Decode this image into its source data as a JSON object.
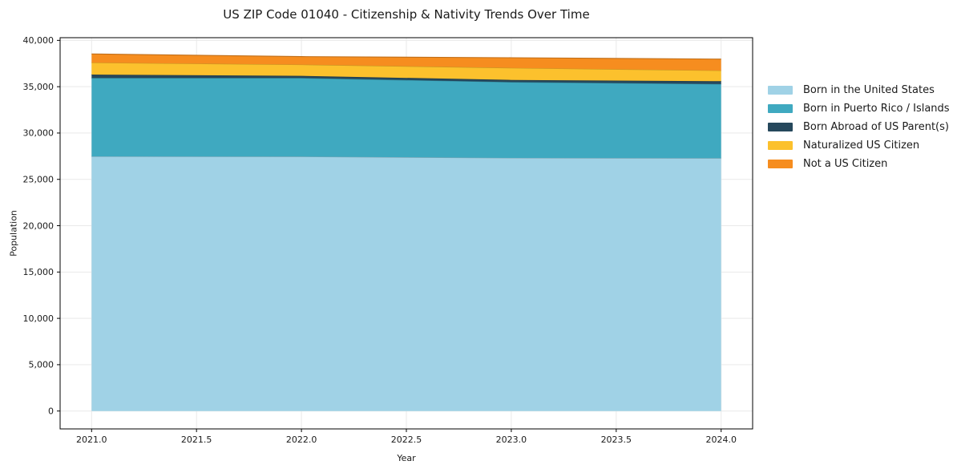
{
  "figure": {
    "background": "#ffffff",
    "text_color": "#1a1a1a",
    "grid_color": "#e9e9e9",
    "frame_color": "#000000"
  },
  "chart_data": {
    "type": "area",
    "stacked": true,
    "title": "US ZIP Code 01040 - Citizenship & Nativity Trends Over Time",
    "xlabel": "Year",
    "ylabel": "Population",
    "x": [
      2021,
      2022,
      2023,
      2024
    ],
    "series": [
      {
        "name": "Born in the United States",
        "color": "#a0d2e6",
        "values": [
          27480,
          27460,
          27310,
          27285
        ]
      },
      {
        "name": "Born in Puerto Rico / Islands",
        "color": "#3fa9c0",
        "values": [
          8460,
          8480,
          8190,
          8005
        ]
      },
      {
        "name": "Born Abroad of US Parent(s)",
        "color": "#26485c",
        "values": [
          370,
          230,
          230,
          300
        ]
      },
      {
        "name": "Naturalized US Citizen",
        "color": "#fcc12d",
        "values": [
          1290,
          1210,
          1300,
          1150
        ]
      },
      {
        "name": "Not a US Citizen",
        "color": "#f68d1f",
        "values": [
          930,
          870,
          1100,
          1240
        ]
      }
    ],
    "xlim": [
      2020.85,
      2024.15
    ],
    "ylim": [
      -1930,
      40290
    ],
    "x_ticks": [
      {
        "value": 2021.0,
        "label": "2021.0"
      },
      {
        "value": 2021.5,
        "label": "2021.5"
      },
      {
        "value": 2022.0,
        "label": "2022.0"
      },
      {
        "value": 2022.5,
        "label": "2022.5"
      },
      {
        "value": 2023.0,
        "label": "2023.0"
      },
      {
        "value": 2023.5,
        "label": "2023.5"
      },
      {
        "value": 2024.0,
        "label": "2024.0"
      }
    ],
    "y_ticks": [
      {
        "value": 0,
        "label": "0"
      },
      {
        "value": 5000,
        "label": "5,000"
      },
      {
        "value": 10000,
        "label": "10,000"
      },
      {
        "value": 15000,
        "label": "15,000"
      },
      {
        "value": 20000,
        "label": "20,000"
      },
      {
        "value": 25000,
        "label": "25,000"
      },
      {
        "value": 30000,
        "label": "30,000"
      },
      {
        "value": 35000,
        "label": "35,000"
      },
      {
        "value": 40000,
        "label": "40,000"
      }
    ],
    "grid": true,
    "legend_position": "right"
  }
}
